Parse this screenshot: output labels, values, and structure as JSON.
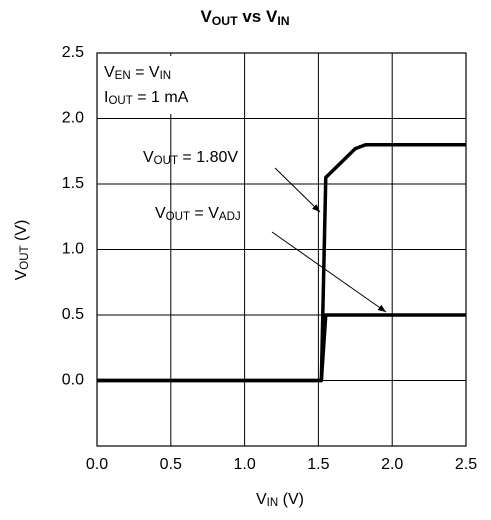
{
  "chart_data": {
    "type": "line",
    "title": [
      {
        "main": "V",
        "sub": "OUT"
      },
      {
        "main": " vs V",
        "sub": "IN"
      }
    ],
    "x_label": [
      {
        "main": "V",
        "sub": "IN"
      },
      {
        "main": " (V)"
      }
    ],
    "y_label": [
      {
        "main": "V",
        "sub": "OUT"
      },
      {
        "main": " (V)"
      }
    ],
    "annotations": [
      [
        {
          "main": "V",
          "sub": "EN"
        },
        {
          "main": " = V",
          "sub": "IN"
        }
      ],
      [
        {
          "main": "I",
          "sub": "OUT"
        },
        {
          "main": " = 1 mA"
        }
      ]
    ],
    "series": [
      {
        "name": [
          {
            "main": "V",
            "sub": "OUT"
          },
          {
            "main": " = 1.80V"
          }
        ],
        "color": "#000000",
        "x": [
          0,
          1.52,
          1.55,
          1.75,
          1.82,
          2.5
        ],
        "values": [
          0,
          0,
          1.55,
          1.77,
          1.8,
          1.8
        ]
      },
      {
        "name": [
          {
            "main": "V",
            "sub": "OUT"
          },
          {
            "main": " = V",
            "sub": "ADJ"
          }
        ],
        "color": "#000000",
        "x": [
          0,
          1.52,
          1.55,
          2.5
        ],
        "values": [
          0,
          0,
          0.5,
          0.5
        ]
      }
    ],
    "xlim": [
      0,
      2.5
    ],
    "xticks": [
      {
        "value": 0,
        "label": "0.0"
      },
      0.5,
      {
        "value": 1,
        "label": "1.0"
      },
      1.5,
      {
        "value": 2,
        "label": "2.0"
      },
      2.5
    ],
    "ylim": [
      -0.5,
      2.5
    ],
    "yticks": [
      {
        "value": 0,
        "label": "0.0"
      },
      0.5,
      {
        "value": 1,
        "label": "1.0"
      },
      1.5,
      {
        "value": 2,
        "label": "2.0"
      },
      2.5
    ],
    "grid": true
  }
}
